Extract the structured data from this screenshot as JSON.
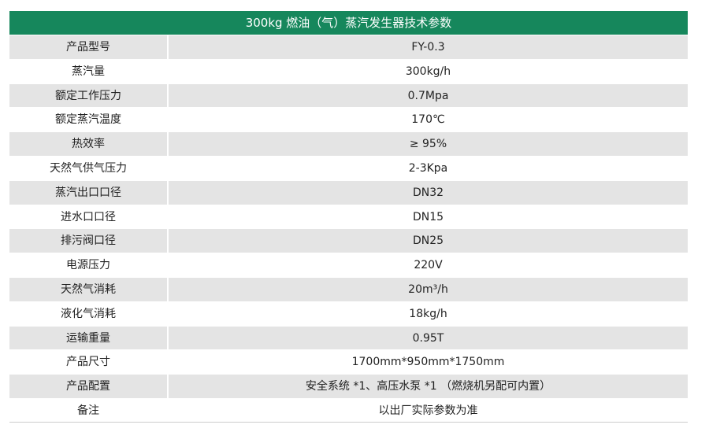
{
  "table": {
    "title": "300kg 燃油（气）蒸汽发生器技术参数",
    "rows": [
      [
        "产品型号",
        "FY-0.3"
      ],
      [
        "蒸汽量",
        "300kg/h"
      ],
      [
        "额定工作压力",
        "0.7Mpa"
      ],
      [
        "额定蒸汽温度",
        "170℃"
      ],
      [
        "热效率",
        "≥ 95%"
      ],
      [
        "天然气供气压力",
        "2-3Kpa"
      ],
      [
        "蒸汽出口口径",
        "DN32"
      ],
      [
        "进水口口径",
        "DN15"
      ],
      [
        "排污阀口径",
        "DN25"
      ],
      [
        "电源压力",
        "220V"
      ],
      [
        "天然气消耗",
        "20m³/h"
      ],
      [
        "液化气消耗",
        "18kg/h"
      ],
      [
        "运输重量",
        "0.95T"
      ],
      [
        "产品尺寸",
        "1700mm*950mm*1750mm"
      ],
      [
        "产品配置",
        "安全系统 *1、高压水泵 *1 （燃烧机另配可内置）"
      ],
      [
        "备注",
        "以出厂实际参数为准"
      ]
    ]
  }
}
